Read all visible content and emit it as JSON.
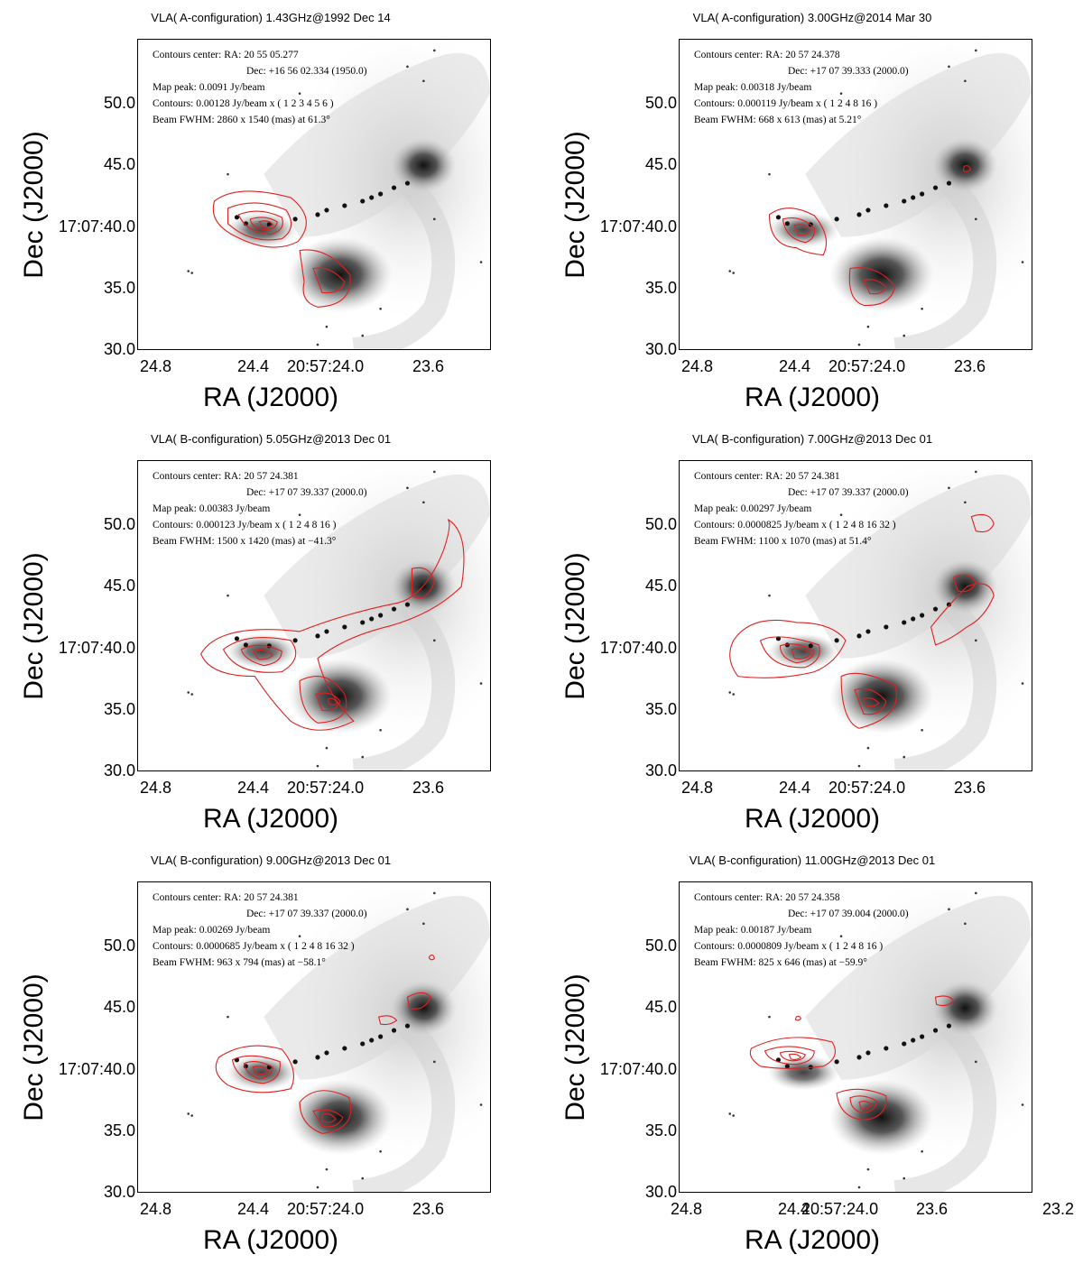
{
  "axis": {
    "xlabel": "RA (J2000)",
    "ylabel": "Dec (J2000)",
    "yticks": [
      "50.0",
      "45.0",
      "17:07:40.0",
      "35.0",
      "30.0"
    ],
    "xticks": [
      "24.8",
      "24.4",
      "20:57:24.0",
      "23.6"
    ],
    "xticks_last": [
      "24.8",
      "24.4",
      "20:57:24.0",
      "23.6",
      "23.2"
    ]
  },
  "colors": {
    "contour": "#e02020",
    "image": "#000000"
  },
  "panels": [
    {
      "title": "VLA( A-configuration)  1.43GHz@1992 Dec 14",
      "center_ra": "Contours center: RA: 20 55 05.277",
      "center_dec": "Dec: +16 56 02.334 (1950.0)",
      "peak": "Map peak: 0.0091 Jy/beam",
      "contours": "Contours: 0.00128 Jy/beam x ( 1 2 3 4 5 6 )",
      "beam": "Beam FWHM: 2860 x 1540 (mas) at 61.3°"
    },
    {
      "title": "VLA( A-configuration)  3.00GHz@2014 Mar 30",
      "center_ra": "Contours center: RA: 20 57 24.378",
      "center_dec": "Dec: +17 07 39.333 (2000.0)",
      "peak": "Map peak: 0.00318 Jy/beam",
      "contours": "Contours: 0.000119 Jy/beam x ( 1 2 4 8 16 )",
      "beam": "Beam FWHM: 668 x 613 (mas) at 5.21°"
    },
    {
      "title": "VLA( B-configuration)  5.05GHz@2013 Dec 01",
      "center_ra": "Contours center: RA: 20 57 24.381",
      "center_dec": "Dec: +17 07 39.337 (2000.0)",
      "peak": "Map peak: 0.00383 Jy/beam",
      "contours": "Contours: 0.000123 Jy/beam x ( 1 2 4 8 16 )",
      "beam": "Beam FWHM: 1500 x 1420 (mas) at −41.3°"
    },
    {
      "title": "VLA( B-configuration)  7.00GHz@2013 Dec 01",
      "center_ra": "Contours center: RA: 20 57 24.381",
      "center_dec": "Dec: +17 07 39.337 (2000.0)",
      "peak": "Map peak: 0.00297 Jy/beam",
      "contours": "Contours: 0.0000825 Jy/beam x ( 1 2 4 8 16 32 )",
      "beam": "Beam FWHM: 1100 x 1070 (mas) at 51.4°"
    },
    {
      "title": "VLA( B-configuration)  9.00GHz@2013 Dec 01",
      "center_ra": "Contours center: RA: 20 57 24.381",
      "center_dec": "Dec: +17 07 39.337 (2000.0)",
      "peak": "Map peak: 0.00269 Jy/beam",
      "contours": "Contours: 0.0000685 Jy/beam x ( 1 2 4 8 16 32 )",
      "beam": "Beam FWHM: 963 x 794 (mas) at −58.1°"
    },
    {
      "title": "VLA( B-configuration)  11.00GHz@2013 Dec 01",
      "center_ra": "Contours center: RA: 20 57 24.358",
      "center_dec": "Dec: +17 07 39.004 (2000.0)",
      "peak": "Map peak: 0.00187 Jy/beam",
      "contours": "Contours: 0.0000809 Jy/beam x ( 1 2 4 8 16 )",
      "beam": "Beam FWHM: 825 x 646 (mas) at −59.9°"
    }
  ]
}
